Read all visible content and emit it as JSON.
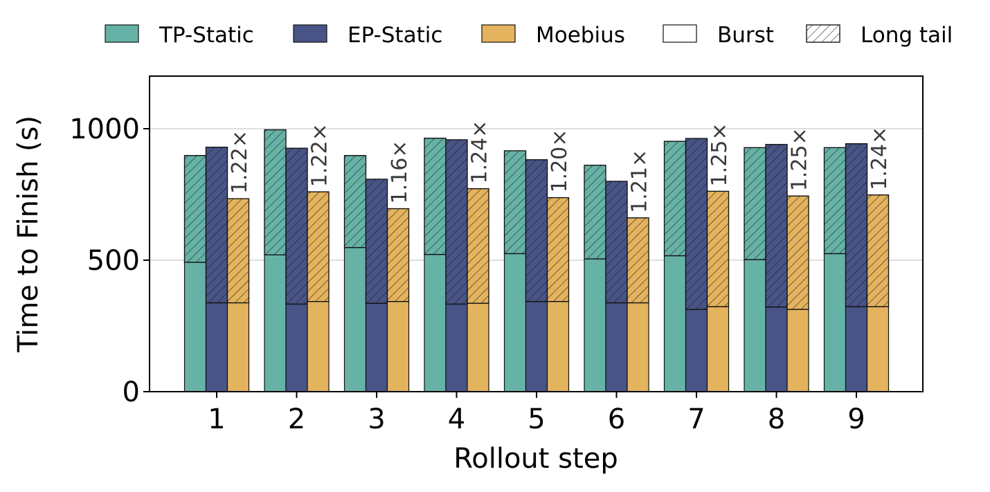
{
  "chart_data": {
    "type": "bar",
    "stacked_segments": [
      "Burst",
      "Long tail"
    ],
    "xlabel": "Rollout step",
    "ylabel": "Time to Finish (s)",
    "ylim": [
      0,
      1200
    ],
    "yticks": [
      0,
      500,
      1000
    ],
    "grid": "horizontal",
    "legend_position": "top",
    "legend": [
      {
        "label": "TP-Static",
        "fill": "#66b2a6",
        "hatch": false
      },
      {
        "label": "EP-Static",
        "fill": "#485486",
        "hatch": false
      },
      {
        "label": "Moebius",
        "fill": "#e3b35e",
        "hatch": false
      },
      {
        "label": "Burst",
        "fill": "#ffffff",
        "hatch": false
      },
      {
        "label": "Long tail",
        "fill": "#ffffff",
        "hatch": true
      }
    ],
    "categories": [
      "1",
      "2",
      "3",
      "4",
      "5",
      "6",
      "7",
      "8",
      "9"
    ],
    "series": [
      {
        "name": "TP-Static",
        "color": "#66b2a6",
        "burst": [
          492,
          520,
          548,
          522,
          525,
          505,
          517,
          502,
          525
        ],
        "total": [
          898,
          996,
          898,
          964,
          916,
          861,
          952,
          928,
          928
        ]
      },
      {
        "name": "EP-Static",
        "color": "#485486",
        "burst": [
          338,
          333,
          336,
          333,
          343,
          338,
          313,
          322,
          323
        ],
        "total": [
          930,
          926,
          808,
          958,
          882,
          800,
          963,
          940,
          943
        ]
      },
      {
        "name": "Moebius",
        "color": "#e3b35e",
        "burst": [
          338,
          343,
          343,
          336,
          343,
          338,
          323,
          313,
          323
        ],
        "total": [
          734,
          760,
          696,
          772,
          738,
          661,
          762,
          744,
          748
        ]
      }
    ],
    "speedup_labels": [
      "1.22×",
      "1.22×",
      "1.16×",
      "1.24×",
      "1.20×",
      "1.21×",
      "1.25×",
      "1.25×",
      "1.24×"
    ]
  }
}
